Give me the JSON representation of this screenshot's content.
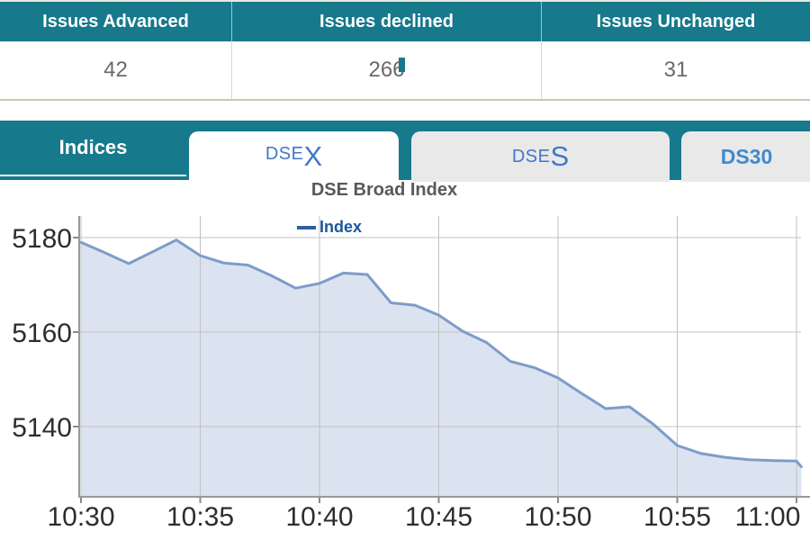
{
  "table": {
    "headers": [
      "Issues Advanced",
      "Issues declined",
      "Issues Unchanged"
    ],
    "values": [
      "42",
      "266",
      "31"
    ]
  },
  "tabs": {
    "group_label": "Indices",
    "items": [
      {
        "prefix": "DSE",
        "suffix": "X",
        "active": true
      },
      {
        "prefix": "DSE",
        "suffix": "S",
        "active": false
      },
      {
        "label": "DS30",
        "active": false
      }
    ]
  },
  "chart_data": {
    "type": "area",
    "title": "DSE Broad Index",
    "legend_position": "top-center",
    "grid": true,
    "series": [
      {
        "name": "Index",
        "x_minutes": [
          0,
          1,
          2,
          3,
          4,
          5,
          6,
          7,
          8,
          9,
          10,
          11,
          12,
          13,
          14,
          15,
          16,
          17,
          18,
          19,
          20,
          21,
          22,
          23,
          24,
          25,
          26,
          27,
          28,
          29,
          30,
          30.2
        ],
        "values": [
          5179.0,
          5176.8,
          5174.5,
          5177.0,
          5179.5,
          5176.2,
          5174.6,
          5174.2,
          5171.9,
          5169.3,
          5170.3,
          5172.5,
          5172.2,
          5166.2,
          5165.7,
          5163.6,
          5160.2,
          5157.8,
          5153.8,
          5152.5,
          5150.3,
          5147.0,
          5143.8,
          5144.2,
          5140.5,
          5136.0,
          5134.3,
          5133.5,
          5133.0,
          5132.8,
          5132.7,
          5131.5
        ]
      }
    ],
    "x_tick_minutes": [
      0,
      5,
      10,
      15,
      20,
      25,
      30
    ],
    "x_tick_labels": [
      "10:30",
      "10:35",
      "10:40",
      "10:45",
      "10:50",
      "10:55",
      "11:00"
    ],
    "y_ticks": [
      5140,
      5160,
      5180
    ],
    "ylim": [
      5125.1,
      5184.6
    ],
    "x_start_label": "10:30",
    "x_end_label": "11:00",
    "xlabel": "",
    "ylabel": ""
  },
  "colors": {
    "teal": "#17798C",
    "tab_blue": "#4077C8",
    "ds30_blue": "#4189CF",
    "title_gray": "#59595B",
    "legend_blue": "#1D5799",
    "line": "#7D9CC9",
    "fill": "#DCE3F0",
    "grid": "#C0C0C0",
    "axis": "#999999"
  }
}
